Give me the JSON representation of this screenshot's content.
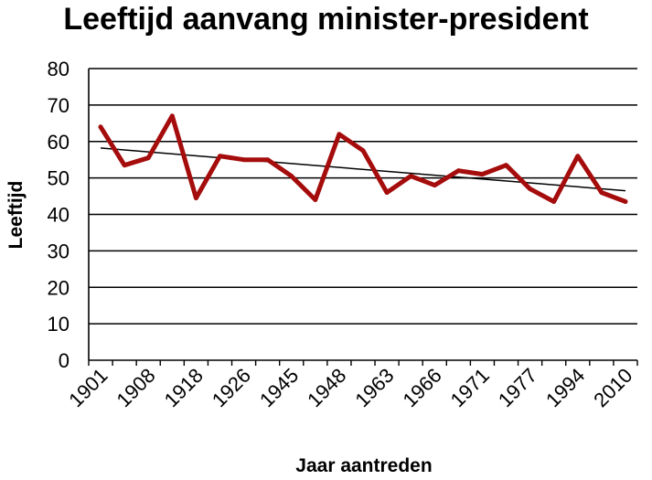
{
  "chart_data": {
    "type": "line",
    "title": "Leeftijd aanvang minister-president",
    "xlabel": "Jaar aantreden",
    "ylabel": "Leeftijd",
    "ylim": [
      0,
      80
    ],
    "yticks": [
      0,
      10,
      20,
      30,
      40,
      50,
      60,
      70,
      80
    ],
    "grid": true,
    "x_tick_labels": [
      "1901",
      "1908",
      "1918",
      "1926",
      "1945",
      "1948",
      "1963",
      "1966",
      "1971",
      "1977",
      "1994",
      "2010"
    ],
    "colors": {
      "series": "#a50c0c",
      "trend": "#000000",
      "grid": "#000000"
    },
    "series": [
      {
        "values": [
          64,
          53.5,
          55.5,
          67,
          44.5,
          56,
          55,
          55,
          50.5,
          44,
          62,
          57.5,
          46,
          50.5,
          48,
          52,
          51,
          53.5,
          47,
          43.5,
          56,
          46,
          43.5
        ]
      }
    ],
    "trendline": {
      "start": 58.2,
      "end": 46.5
    }
  }
}
